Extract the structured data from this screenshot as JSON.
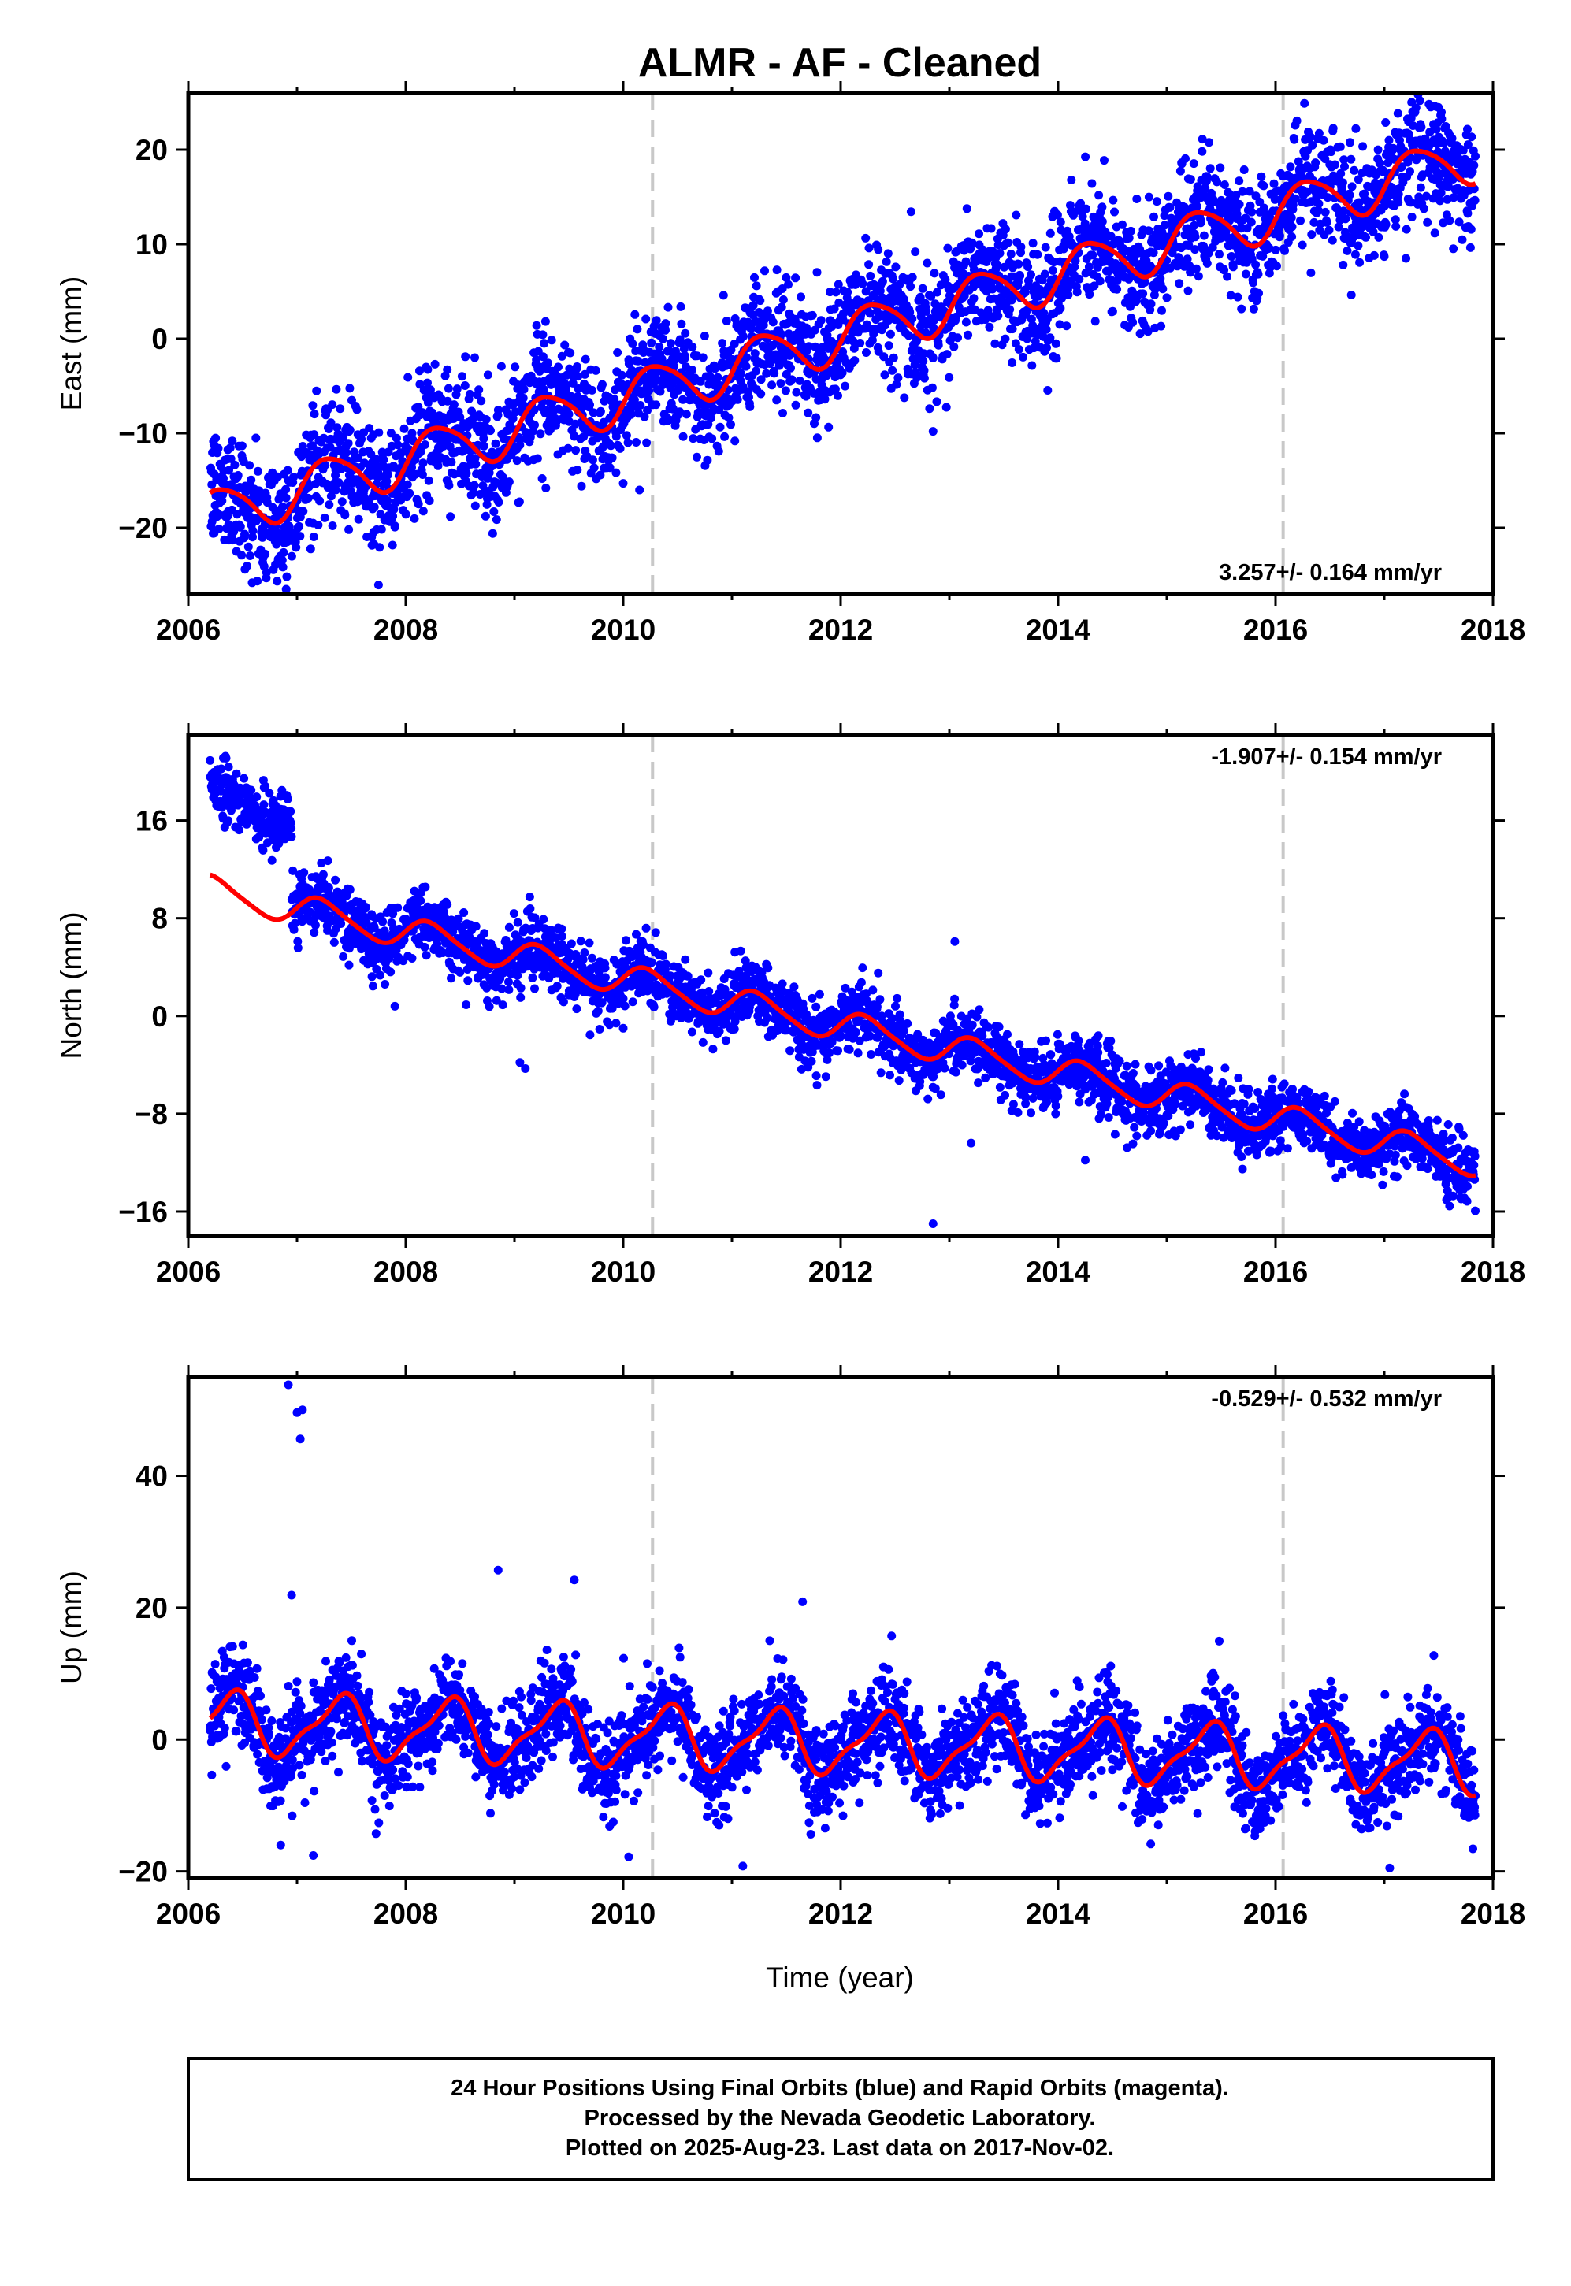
{
  "title": "ALMR  - AF - Cleaned",
  "x_axis_title": "Time (year)",
  "footer": {
    "line1": "24 Hour Positions Using Final Orbits (blue) and Rapid Orbits (magenta).",
    "line2": "Processed by the Nevada Geodetic Laboratory.",
    "line3": "Plotted on 2025-Aug-23. Last data on 2017-Nov-02."
  },
  "colors": {
    "data": "#0000ff",
    "fit": "#ff0000",
    "marker_lines": "#c8c8c8"
  },
  "chart_data": [
    {
      "type": "scatter",
      "name": "east",
      "ylabel": "East (mm)",
      "rate_text": "3.257+/- 0.164 mm/yr",
      "xlim": [
        2006,
        2018
      ],
      "ylim": [
        -27,
        26
      ],
      "x_ticks": [
        2006,
        2008,
        2010,
        2012,
        2014,
        2016,
        2018
      ],
      "y_ticks": [
        -20,
        -10,
        0,
        10,
        20
      ],
      "event_lines_x": [
        2010.27,
        2016.07
      ],
      "data_range": [
        2006.2,
        2017.84
      ],
      "fit": {
        "t0": 2012,
        "offset": 0.3,
        "rate": 3.257,
        "annual_amp": 2.6,
        "annual_phase": -0.3,
        "semi_amp": 0.4,
        "semi_phase": 0.2
      },
      "scatter": 3.2,
      "outliers": [
        [
          2006.9,
          -26.5
        ],
        [
          2007.9,
          -19.8
        ],
        [
          2008.8,
          -20.6
        ],
        [
          2012.85,
          -9.8
        ],
        [
          2010.15,
          -16.0
        ],
        [
          2017.0,
          8.7
        ],
        [
          2017.2,
          8.5
        ]
      ],
      "series": [
        {
          "name": "",
          "kind": "points",
          "color": "#0000ff"
        },
        {
          "name": "",
          "kind": "fit",
          "color": "#ff0000"
        }
      ]
    },
    {
      "type": "scatter",
      "name": "north",
      "ylabel": "North (mm)",
      "rate_text": "-1.907+/- 0.154 mm/yr",
      "xlim": [
        2006,
        2018
      ],
      "ylim": [
        -18,
        23
      ],
      "x_ticks": [
        2006,
        2008,
        2010,
        2012,
        2014,
        2016,
        2018
      ],
      "y_ticks": [
        -16,
        -8,
        0,
        8,
        16
      ],
      "event_lines_x": [
        2010.27,
        2016.07
      ],
      "data_range": [
        2006.2,
        2017.84
      ],
      "fit": {
        "t0": 2012,
        "offset": -0.8,
        "rate": -1.907,
        "annual_amp": 1.2,
        "annual_phase": 0.1,
        "semi_amp": 0.2,
        "semi_phase": 0.0
      },
      "early_segment": {
        "end": 2006.95,
        "offset": 7.8
      },
      "scatter": 1.3,
      "outliers": [
        [
          2007.9,
          0.8
        ],
        [
          2009.05,
          -3.8
        ],
        [
          2009.1,
          -4.3
        ],
        [
          2012.85,
          -17.0
        ],
        [
          2013.05,
          6.1
        ],
        [
          2013.2,
          -10.4
        ],
        [
          2014.25,
          -11.8
        ],
        [
          2010.0,
          -1.0
        ]
      ],
      "series": [
        {
          "name": "",
          "kind": "points",
          "color": "#0000ff"
        },
        {
          "name": "",
          "kind": "fit",
          "color": "#ff0000"
        }
      ]
    },
    {
      "type": "scatter",
      "name": "up",
      "ylabel": "Up (mm)",
      "rate_text": "-0.529+/- 0.532 mm/yr",
      "xlim": [
        2006,
        2018
      ],
      "ylim": [
        -21,
        55
      ],
      "x_ticks": [
        2006,
        2008,
        2010,
        2012,
        2014,
        2016,
        2018
      ],
      "y_ticks": [
        -20,
        0,
        20,
        40
      ],
      "event_lines_x": [
        2010.27,
        2016.07
      ],
      "data_range": [
        2006.2,
        2017.84
      ],
      "fit": {
        "t0": 2012,
        "offset": -0.5,
        "rate": -0.529,
        "annual_amp": 4.4,
        "annual_phase": -0.85,
        "semi_amp": 1.4,
        "semi_phase": 1.5
      },
      "scatter": 3.6,
      "outliers": [
        [
          2006.92,
          53.8
        ],
        [
          2007.0,
          49.6
        ],
        [
          2007.05,
          50.0
        ],
        [
          2007.03,
          45.6
        ],
        [
          2006.95,
          21.9
        ],
        [
          2008.85,
          25.7
        ],
        [
          2009.55,
          24.2
        ],
        [
          2011.65,
          20.9
        ],
        [
          2007.15,
          -17.6
        ],
        [
          2010.05,
          -17.8
        ],
        [
          2011.1,
          -19.2
        ],
        [
          2017.05,
          -19.5
        ],
        [
          2006.85,
          -16.0
        ]
      ],
      "series": [
        {
          "name": "",
          "kind": "points",
          "color": "#0000ff"
        },
        {
          "name": "",
          "kind": "fit",
          "color": "#ff0000"
        }
      ]
    }
  ]
}
